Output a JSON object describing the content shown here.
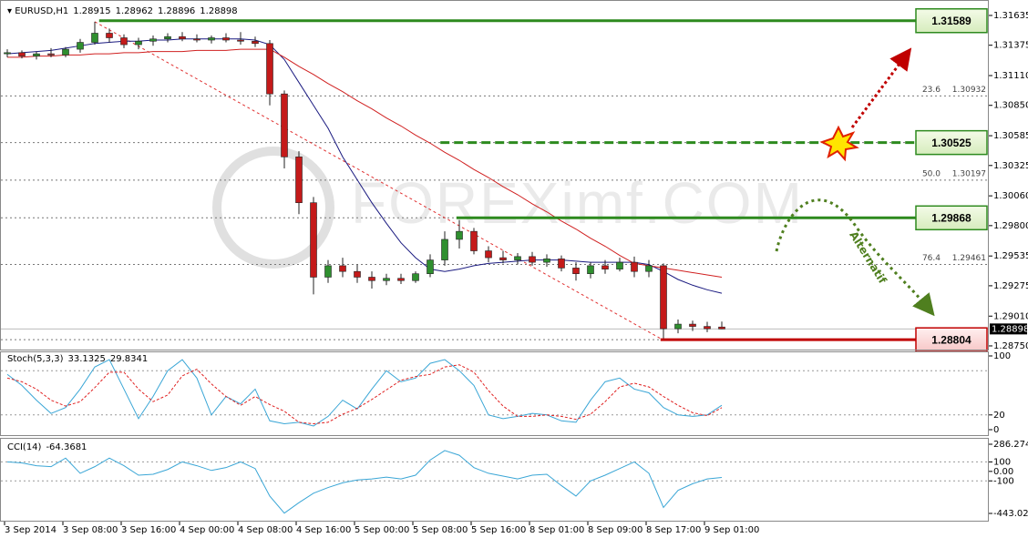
{
  "header": {
    "symbol": "EURUSD,H1"
  },
  "chart_data": [
    {
      "type": "candlestick",
      "categories": [
        "3 Sep 2014",
        null,
        null,
        null,
        "3 Sep 08:00",
        null,
        null,
        null,
        "3 Sep 16:00",
        null,
        null,
        null,
        "4 Sep 00:00",
        null,
        null,
        null,
        "4 Sep 08:00",
        null,
        null,
        null,
        "4 Sep 16:00",
        null,
        null,
        null,
        "5 Sep 00:00",
        null,
        null,
        null,
        "5 Sep 08:00",
        null,
        null,
        null,
        "5 Sep 16:00",
        null,
        null,
        null,
        "8 Sep 01:00",
        null,
        null,
        null,
        "8 Sep 09:00",
        null,
        null,
        null,
        "8 Sep 17:00",
        null,
        null,
        null,
        "9 Sep 01:00",
        null
      ],
      "ohlc": [
        [
          1.313,
          1.3134,
          1.3127,
          1.3131
        ],
        [
          1.3131,
          1.3133,
          1.3126,
          1.3128
        ],
        [
          1.3128,
          1.3132,
          1.3125,
          1.313
        ],
        [
          1.313,
          1.3135,
          1.3127,
          1.3129
        ],
        [
          1.3129,
          1.3136,
          1.3127,
          1.3134
        ],
        [
          1.3134,
          1.3143,
          1.3131,
          1.314
        ],
        [
          1.314,
          1.3158,
          1.3138,
          1.3148
        ],
        [
          1.3148,
          1.3152,
          1.314,
          1.3144
        ],
        [
          1.3144,
          1.3147,
          1.3135,
          1.3138
        ],
        [
          1.3138,
          1.3144,
          1.3134,
          1.3141
        ],
        [
          1.3141,
          1.3146,
          1.3137,
          1.3143
        ],
        [
          1.3143,
          1.3148,
          1.314,
          1.3145
        ],
        [
          1.3145,
          1.3149,
          1.3141,
          1.3143
        ],
        [
          1.3143,
          1.3147,
          1.314,
          1.3142
        ],
        [
          1.3142,
          1.3146,
          1.3139,
          1.3144
        ],
        [
          1.3144,
          1.3148,
          1.314,
          1.3142
        ],
        [
          1.3142,
          1.3149,
          1.3138,
          1.3141
        ],
        [
          1.3141,
          1.3145,
          1.3136,
          1.3139
        ],
        [
          1.3139,
          1.3142,
          1.3085,
          1.3095
        ],
        [
          1.3095,
          1.3098,
          1.303,
          1.304
        ],
        [
          1.304,
          1.3045,
          1.299,
          1.3
        ],
        [
          1.3,
          1.3005,
          1.292,
          1.2935
        ],
        [
          1.2935,
          1.295,
          1.293,
          1.2945
        ],
        [
          1.2945,
          1.2952,
          1.2935,
          1.294
        ],
        [
          1.294,
          1.2946,
          1.293,
          1.2935
        ],
        [
          1.2935,
          1.294,
          1.2925,
          1.2932
        ],
        [
          1.2932,
          1.2938,
          1.2928,
          1.2934
        ],
        [
          1.2934,
          1.2938,
          1.2929,
          1.2932
        ],
        [
          1.2932,
          1.294,
          1.293,
          1.2938
        ],
        [
          1.2938,
          1.2955,
          1.2935,
          1.295
        ],
        [
          1.295,
          1.2975,
          1.2945,
          1.2968
        ],
        [
          1.2968,
          1.2985,
          1.296,
          1.2975
        ],
        [
          1.2975,
          1.2978,
          1.2955,
          1.2958
        ],
        [
          1.2958,
          1.2962,
          1.2948,
          1.2952
        ],
        [
          1.2952,
          1.2958,
          1.2947,
          1.295
        ],
        [
          1.295,
          1.2956,
          1.2946,
          1.2953
        ],
        [
          1.2953,
          1.2957,
          1.2945,
          1.2948
        ],
        [
          1.2948,
          1.2955,
          1.2944,
          1.2951
        ],
        [
          1.2951,
          1.2954,
          1.294,
          1.2943
        ],
        [
          1.2943,
          1.2948,
          1.2932,
          1.2938
        ],
        [
          1.2938,
          1.2948,
          1.2934,
          1.2945
        ],
        [
          1.2945,
          1.295,
          1.2938,
          1.2942
        ],
        [
          1.2942,
          1.2952,
          1.294,
          1.2948
        ],
        [
          1.2948,
          1.2953,
          1.2935,
          1.294
        ],
        [
          1.294,
          1.295,
          1.2935,
          1.2945
        ],
        [
          1.2945,
          1.2947,
          1.288,
          1.289
        ],
        [
          1.289,
          1.2898,
          1.2886,
          1.2894
        ],
        [
          1.2894,
          1.2897,
          1.2888,
          1.2892
        ],
        [
          1.2892,
          1.2896,
          1.2887,
          1.289
        ],
        [
          1.28915,
          1.28962,
          1.28896,
          1.28898
        ]
      ],
      "up_color": "#2f8f2f",
      "down_color": "#c41a1a",
      "moving_averages": [
        {
          "color": "#1a1a80",
          "values": [
            1.313,
            1.3131,
            1.3132,
            1.3133,
            1.3135,
            1.3137,
            1.3139,
            1.314,
            1.3141,
            1.3141,
            1.3142,
            1.3142,
            1.3143,
            1.3143,
            1.3143,
            1.3143,
            1.3143,
            1.3142,
            1.3138,
            1.3125,
            1.3105,
            1.3085,
            1.3065,
            1.304,
            1.302,
            1.3,
            1.2982,
            1.2965,
            1.2952,
            1.2942,
            1.294,
            1.2942,
            1.2945,
            1.2947,
            1.2948,
            1.2949,
            1.295,
            1.295,
            1.295,
            1.2949,
            1.2948,
            1.2948,
            1.2948,
            1.2948,
            1.2946,
            1.294,
            1.2933,
            1.2928,
            1.2924,
            1.2921
          ]
        },
        {
          "color": "#d02020",
          "values": [
            1.3127,
            1.3127,
            1.3128,
            1.3128,
            1.3129,
            1.3129,
            1.313,
            1.313,
            1.3131,
            1.3131,
            1.3132,
            1.3132,
            1.3132,
            1.3133,
            1.3133,
            1.3133,
            1.3134,
            1.3134,
            1.3134,
            1.3127,
            1.3119,
            1.3112,
            1.3104,
            1.3097,
            1.3089,
            1.3082,
            1.3074,
            1.3067,
            1.3059,
            1.3052,
            1.3044,
            1.3037,
            1.3029,
            1.3022,
            1.3014,
            1.3007,
            1.2999,
            1.2992,
            1.2984,
            1.2977,
            1.2969,
            1.2962,
            1.2954,
            1.2947,
            1.2945,
            1.2943,
            1.2941,
            1.2939,
            1.2937,
            1.2935
          ]
        }
      ],
      "levels": [
        {
          "value": 1.31589,
          "color": "#2d8a1e",
          "style": "solid"
        },
        {
          "value": 1.30525,
          "color": "#2d8a1e",
          "style": "dashed"
        },
        {
          "value": 1.29868,
          "color": "#2d8a1e",
          "style": "solid"
        },
        {
          "value": 1.28804,
          "color": "#c00000",
          "style": "solid"
        }
      ],
      "fib_levels": [
        {
          "label": "23.6",
          "price": 1.30932
        },
        {
          "label": "50.0",
          "price": 1.30197
        },
        {
          "label": "76.4",
          "price": 1.29461
        }
      ],
      "ylim": [
        1.28718,
        1.31746
      ],
      "yticks": [
        1.31635,
        1.31375,
        {
          "value": 1.3111,
          "label": "1.31110"
        },
        {
          "value": 1.3085,
          "label": "1.30850"
        },
        1.30585,
        1.30325,
        {
          "value": 1.3006,
          "label": "1.30060"
        },
        {
          "value": 1.298,
          "label": "1.29800"
        },
        1.29535,
        1.29275,
        {
          "value": 1.2901,
          "label": "1.29010"
        },
        {
          "value": 1.2875,
          "label": "1.28750"
        }
      ],
      "watermark": "FOREXimf.COM",
      "annotation": "Alternatif"
    },
    {
      "type": "line",
      "title": "Stoch(5,3,3)",
      "series": [
        {
          "color": "#3aa6d6",
          "style": "solid",
          "values": [
            75,
            60,
            40,
            22,
            30,
            55,
            85,
            95,
            55,
            15,
            45,
            80,
            95,
            70,
            20,
            45,
            35,
            55,
            12,
            8,
            10,
            5,
            18,
            40,
            28,
            55,
            80,
            65,
            70,
            90,
            95,
            80,
            60,
            20,
            15,
            18,
            22,
            20,
            12,
            10,
            40,
            65,
            70,
            55,
            50,
            30,
            20,
            18,
            20,
            33.1325
          ]
        },
        {
          "color": "#e02020",
          "style": "dashed",
          "values": [
            70,
            65,
            55,
            40,
            32,
            38,
            57,
            78,
            78,
            55,
            38,
            47,
            73,
            82,
            62,
            45,
            33,
            45,
            34,
            25,
            10,
            8,
            10,
            21,
            29,
            41,
            54,
            67,
            72,
            75,
            85,
            88,
            78,
            53,
            32,
            18,
            18,
            20,
            18,
            14,
            21,
            38,
            58,
            63,
            58,
            45,
            33,
            23,
            19,
            29.8341
          ]
        }
      ],
      "levels": [
        80,
        20
      ],
      "ylim": [
        0,
        100
      ],
      "yticks": [
        100,
        20,
        0
      ]
    },
    {
      "type": "line",
      "title": "CCI(14)",
      "series": [
        {
          "color": "#3aa6d6",
          "style": "solid",
          "values": [
            100,
            90,
            60,
            50,
            140,
            -20,
            50,
            140,
            60,
            -40,
            -30,
            20,
            100,
            60,
            10,
            40,
            100,
            30,
            -260,
            -440,
            -330,
            -230,
            -170,
            -120,
            -90,
            -80,
            -60,
            -80,
            -40,
            120,
            220,
            170,
            40,
            -20,
            -50,
            -80,
            -40,
            -30,
            -150,
            -260,
            -100,
            -40,
            30,
            100,
            -20,
            -380,
            -200,
            -130,
            -80,
            -64.3681
          ]
        }
      ],
      "levels": [
        100,
        -100
      ],
      "ylim": [
        -443.0259,
        286.2745
      ],
      "yticks": [
        286.2745,
        100,
        {
          "value": 0,
          "label": "0.00"
        },
        -100,
        -443.0259
      ]
    }
  ]
}
